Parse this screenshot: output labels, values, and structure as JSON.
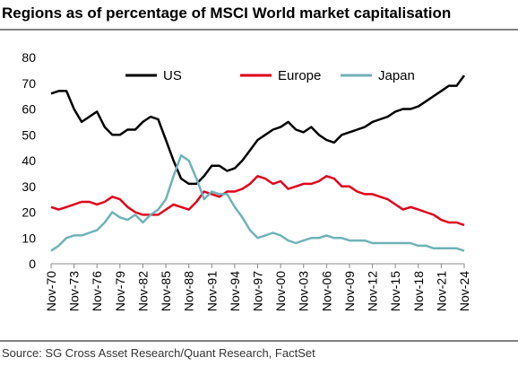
{
  "chart_data": {
    "type": "line",
    "title": "Regions as of percentage of MSCI World market capitalisation",
    "source": "Source: SG Cross Asset Research/Quant Research, FactSet",
    "categories": [
      "Nov-70",
      null,
      null,
      "Nov-73",
      null,
      null,
      "Nov-76",
      null,
      null,
      "Nov-79",
      null,
      null,
      "Nov-82",
      null,
      null,
      "Nov-85",
      null,
      null,
      "Nov-88",
      null,
      null,
      "Nov-91",
      null,
      null,
      "Nov-94",
      null,
      null,
      "Nov-97",
      null,
      null,
      "Nov-00",
      null,
      null,
      "Nov-03",
      null,
      null,
      "Nov-06",
      null,
      null,
      "Nov-09",
      null,
      null,
      "Nov-12",
      null,
      null,
      "Nov-15",
      null,
      null,
      "Nov-18",
      null,
      null,
      "Nov-21",
      null,
      null,
      "Nov-24"
    ],
    "series": [
      {
        "name": "US",
        "color": "#000000",
        "values": [
          66,
          67,
          67,
          60,
          55,
          57,
          59,
          53,
          50,
          50,
          52,
          52,
          55,
          57,
          56,
          48,
          40,
          33,
          31,
          31,
          34,
          38,
          38,
          36,
          37,
          40,
          44,
          48,
          50,
          52,
          53,
          55,
          52,
          51,
          53,
          50,
          48,
          47,
          50,
          51,
          52,
          53,
          55,
          56,
          57,
          59,
          60,
          60,
          61,
          63,
          65,
          67,
          69,
          69,
          73
        ]
      },
      {
        "name": "Europe",
        "color": "#e0001b",
        "values": [
          22,
          21,
          22,
          23,
          24,
          24,
          23,
          24,
          26,
          25,
          22,
          20,
          19,
          19,
          19,
          21,
          23,
          22,
          21,
          24,
          28,
          27,
          26,
          28,
          28,
          29,
          31,
          34,
          33,
          31,
          32,
          29,
          30,
          31,
          31,
          32,
          34,
          33,
          30,
          30,
          28,
          27,
          27,
          26,
          25,
          23,
          21,
          22,
          21,
          20,
          19,
          17,
          16,
          16,
          15
        ]
      },
      {
        "name": "Japan",
        "color": "#6fb2b8",
        "values": [
          5,
          7,
          10,
          11,
          11,
          12,
          13,
          16,
          20,
          18,
          17,
          19,
          16,
          19,
          21,
          25,
          34,
          42,
          40,
          33,
          25,
          28,
          27,
          27,
          22,
          18,
          13,
          10,
          11,
          12,
          11,
          9,
          8,
          9,
          10,
          10,
          11,
          10,
          10,
          9,
          9,
          9,
          8,
          8,
          8,
          8,
          8,
          8,
          7,
          7,
          6,
          6,
          6,
          6,
          5
        ]
      }
    ],
    "ylim": [
      0,
      80
    ],
    "yticks": [
      0,
      10,
      20,
      30,
      40,
      50,
      60,
      70,
      80
    ],
    "legend": "top"
  }
}
